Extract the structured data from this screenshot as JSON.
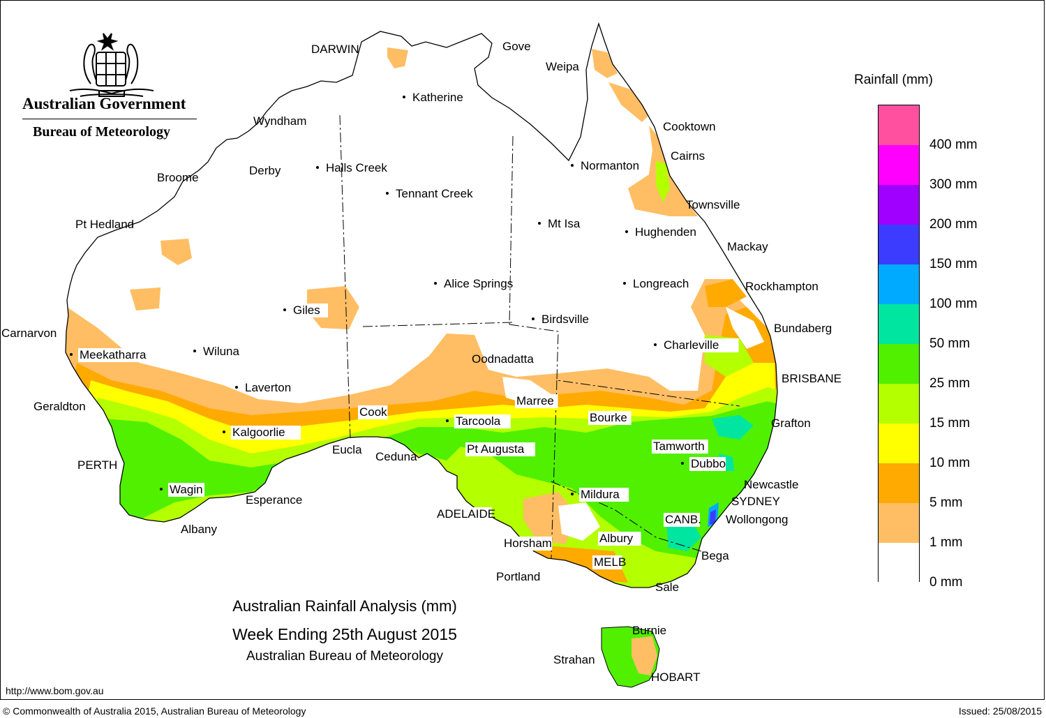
{
  "header": {
    "government": "Australian Government",
    "agency": "Bureau of Meteorology",
    "logo_icon": "coat-of-arms-icon"
  },
  "legend": {
    "title": "Rainfall (mm)",
    "bands": [
      {
        "label": "0 mm",
        "color": "#ffffff"
      },
      {
        "label": "1 mm",
        "color": "#ffbe64"
      },
      {
        "label": "5 mm",
        "color": "#ffaa00"
      },
      {
        "label": "10 mm",
        "color": "#ffff00"
      },
      {
        "label": "15 mm",
        "color": "#b4ff00"
      },
      {
        "label": "25 mm",
        "color": "#50f000"
      },
      {
        "label": "50 mm",
        "color": "#00e6a0"
      },
      {
        "label": "100 mm",
        "color": "#00aaff"
      },
      {
        "label": "150 mm",
        "color": "#3c3cff"
      },
      {
        "label": "200 mm",
        "color": "#a000ff"
      },
      {
        "label": "300 mm",
        "color": "#ff00ff"
      },
      {
        "label": "400 mm",
        "color": "#ff50a0"
      }
    ]
  },
  "map_labels": [
    {
      "name": "DARWIN",
      "boxed": true
    },
    {
      "name": "Gove",
      "boxed": false
    },
    {
      "name": "Weipa",
      "boxed": false
    },
    {
      "name": "Katherine",
      "boxed": false
    },
    {
      "name": "Cooktown",
      "boxed": false
    },
    {
      "name": "Wyndham",
      "boxed": false
    },
    {
      "name": "Cairns",
      "boxed": false
    },
    {
      "name": "Normanton",
      "boxed": false
    },
    {
      "name": "Derby",
      "boxed": false
    },
    {
      "name": "Halls Creek",
      "boxed": false
    },
    {
      "name": "Broome",
      "boxed": false
    },
    {
      "name": "Tennant Creek",
      "boxed": false
    },
    {
      "name": "Townsville",
      "boxed": false
    },
    {
      "name": "Pt Hedland",
      "boxed": false
    },
    {
      "name": "Mt Isa",
      "boxed": false
    },
    {
      "name": "Hughenden",
      "boxed": false
    },
    {
      "name": "Mackay",
      "boxed": false
    },
    {
      "name": "Alice Springs",
      "boxed": false
    },
    {
      "name": "Longreach",
      "boxed": false
    },
    {
      "name": "Rockhampton",
      "boxed": false
    },
    {
      "name": "Giles",
      "boxed": true
    },
    {
      "name": "Birdsville",
      "boxed": false
    },
    {
      "name": "Bundaberg",
      "boxed": false
    },
    {
      "name": "Carnarvon",
      "boxed": false
    },
    {
      "name": "Charleville",
      "boxed": true
    },
    {
      "name": "Meekatharra",
      "boxed": true
    },
    {
      "name": "Wiluna",
      "boxed": false
    },
    {
      "name": "Oodnadatta",
      "boxed": false
    },
    {
      "name": "BRISBANE",
      "boxed": false
    },
    {
      "name": "Laverton",
      "boxed": false
    },
    {
      "name": "Marree",
      "boxed": true
    },
    {
      "name": "Geraldton",
      "boxed": false
    },
    {
      "name": "Cook",
      "boxed": true
    },
    {
      "name": "Bourke",
      "boxed": true
    },
    {
      "name": "Tarcoola",
      "boxed": true
    },
    {
      "name": "Grafton",
      "boxed": false
    },
    {
      "name": "Kalgoorlie",
      "boxed": true
    },
    {
      "name": "Tamworth",
      "boxed": true
    },
    {
      "name": "Eucla",
      "boxed": false
    },
    {
      "name": "Pt Augusta",
      "boxed": true
    },
    {
      "name": "Ceduna",
      "boxed": false
    },
    {
      "name": "Dubbo",
      "boxed": true
    },
    {
      "name": "PERTH",
      "boxed": false
    },
    {
      "name": "Newcastle",
      "boxed": false
    },
    {
      "name": "Wagin",
      "boxed": true
    },
    {
      "name": "Mildura",
      "boxed": true
    },
    {
      "name": "SYDNEY",
      "boxed": false
    },
    {
      "name": "Esperance",
      "boxed": false
    },
    {
      "name": "ADELAIDE",
      "boxed": true
    },
    {
      "name": "CANB.",
      "boxed": true
    },
    {
      "name": "Wollongong",
      "boxed": false
    },
    {
      "name": "Albany",
      "boxed": false
    },
    {
      "name": "Horsham",
      "boxed": true
    },
    {
      "name": "Albury",
      "boxed": true
    },
    {
      "name": "Bega",
      "boxed": false
    },
    {
      "name": "MELB",
      "boxed": true
    },
    {
      "name": "Portland",
      "boxed": false
    },
    {
      "name": "Sale",
      "boxed": false
    },
    {
      "name": "Burnie",
      "boxed": false
    },
    {
      "name": "Strahan",
      "boxed": false
    },
    {
      "name": "HOBART",
      "boxed": false
    }
  ],
  "titles": {
    "line1": "Australian Rainfall Analysis (mm)",
    "line2": "Week Ending 25th August 2015",
    "line3": "Australian Bureau of Meteorology"
  },
  "footer": {
    "url": "http://www.bom.gov.au",
    "copyright": "© Commonwealth of Australia 2015, Australian Bureau of Meteorology",
    "issued": "Issued: 25/08/2015"
  }
}
